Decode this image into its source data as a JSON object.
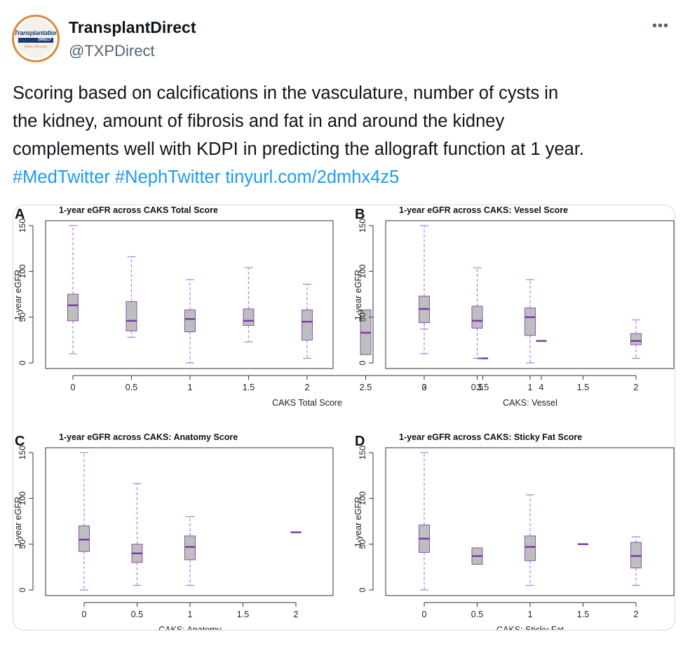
{
  "header": {
    "avatar_text_top": "Transplantation",
    "avatar_text_bar": "DIRECT",
    "avatar_text_bottom": "Open Access",
    "display_name": "TransplantDirect",
    "handle": "@TXPDirect",
    "more_icon": "more-horizontal-icon",
    "more_label": "•••"
  },
  "tweet": {
    "lines": [
      "Scoring based on calcifications in the vasculature, number of cysts in",
      "the kidney, amount of fibrosis and fat in and around the kidney",
      "complements well with KDPI in predicting the allograft function at 1 year."
    ],
    "hashtag1": "#MedTwitter",
    "hashtag2": "#NephTwitter",
    "link": "tinyurl.com/2dmhx4z5"
  },
  "colors": {
    "link": "#1d9bf0",
    "box_fill": "#bebebe",
    "box_stroke": "#8a4fb8",
    "whisker": "#b07ee0",
    "median": "#7d3aa8"
  },
  "chart_data": [
    {
      "panel": "A",
      "type": "box",
      "title": "1-year eGFR across CAKS Total Score",
      "xlabel": "CAKS Total Score",
      "ylabel": "1-year eGFR",
      "ylim": [
        0,
        150
      ],
      "yticks": [
        "0",
        "50",
        "100",
        "150"
      ],
      "categories": [
        "0",
        "0.5",
        "1",
        "1.5",
        "2",
        "2.5",
        "3",
        "3.5",
        "4"
      ],
      "boxes": [
        {
          "min": 10,
          "q1": 46,
          "median": 63,
          "q3": 75,
          "max": 150
        },
        {
          "min": 28,
          "q1": 35,
          "median": 46,
          "q3": 67,
          "max": 116
        },
        {
          "min": 0,
          "q1": 34,
          "median": 48,
          "q3": 58,
          "max": 91
        },
        {
          "min": 23,
          "q1": 41,
          "median": 46,
          "q3": 59,
          "max": 104
        },
        {
          "min": 5,
          "q1": 25,
          "median": 45,
          "q3": 58,
          "max": 86
        },
        {
          "min": 9,
          "q1": 9,
          "median": 33,
          "q3": 58,
          "max": 58
        },
        {
          "min": 37,
          "q1": 48,
          "median": 59,
          "q3": 61,
          "max": 63
        },
        {
          "min": 5,
          "q1": 5,
          "median": 5,
          "q3": 5,
          "max": 5
        },
        {
          "min": 24,
          "q1": 24,
          "median": 24,
          "q3": 24,
          "max": 24
        }
      ]
    },
    {
      "panel": "B",
      "type": "box",
      "title": "1-year eGFR across CAKS: Vessel Score",
      "xlabel": "CAKS: Vessel",
      "ylabel": "1-year eGFR",
      "ylim": [
        0,
        150
      ],
      "yticks": [
        "0",
        "50",
        "100",
        "150"
      ],
      "categories": [
        "0",
        "0.5",
        "1",
        "1.5",
        "2"
      ],
      "boxes": [
        {
          "min": 10,
          "q1": 44,
          "median": 59,
          "q3": 73,
          "max": 150
        },
        {
          "min": 5,
          "q1": 38,
          "median": 46,
          "q3": 62,
          "max": 104
        },
        {
          "min": 0,
          "q1": 30,
          "median": 50,
          "q3": 60,
          "max": 91
        },
        null,
        {
          "min": 5,
          "q1": 20,
          "median": 24,
          "q3": 32,
          "max": 47
        }
      ]
    },
    {
      "panel": "C",
      "type": "box",
      "title": "1-year eGFR across CAKS: Anatomy Score",
      "xlabel": "CAKS: Anatomy",
      "ylabel": "1-year eGFR",
      "ylim": [
        0,
        150
      ],
      "yticks": [
        "0",
        "50",
        "100",
        "150"
      ],
      "categories": [
        "0",
        "0.5",
        "1",
        "1.5",
        "2"
      ],
      "boxes": [
        {
          "min": 0,
          "q1": 42,
          "median": 55,
          "q3": 70,
          "max": 150
        },
        {
          "min": 5,
          "q1": 30,
          "median": 40,
          "q3": 50,
          "max": 116
        },
        {
          "min": 5,
          "q1": 33,
          "median": 47,
          "q3": 59,
          "max": 80
        },
        null,
        {
          "min": 63,
          "q1": 63,
          "median": 63,
          "q3": 63,
          "max": 63
        }
      ]
    },
    {
      "panel": "D",
      "type": "box",
      "title": "1-year eGFR across CAKS: Sticky Fat Score",
      "xlabel": "CAKS: Sticky Fat",
      "ylabel": "1-year eGFR",
      "ylim": [
        0,
        150
      ],
      "yticks": [
        "0",
        "50",
        "100",
        "150"
      ],
      "categories": [
        "0",
        "0.5",
        "1",
        "1.5",
        "2"
      ],
      "boxes": [
        {
          "min": 0,
          "q1": 41,
          "median": 56,
          "q3": 71,
          "max": 150
        },
        {
          "min": 28,
          "q1": 28,
          "median": 37,
          "q3": 46,
          "max": 46
        },
        {
          "min": 5,
          "q1": 32,
          "median": 47,
          "q3": 59,
          "max": 104
        },
        {
          "min": 50,
          "q1": 50,
          "median": 50,
          "q3": 50,
          "max": 50
        },
        {
          "min": 5,
          "q1": 24,
          "median": 37,
          "q3": 52,
          "max": 58
        }
      ]
    }
  ]
}
